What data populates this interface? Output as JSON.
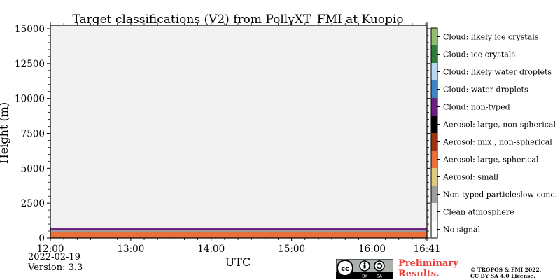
{
  "chart_data": {
    "type": "heatmap",
    "title": "Target classifications (V2) from PollyXT_FMI at Kuopio",
    "xlabel": "UTC",
    "ylabel": "Height (m)",
    "xlim": [
      "12:00",
      "16:41"
    ],
    "ylim": [
      0,
      15250
    ],
    "x_ticks": [
      "12:00",
      "13:00",
      "14:00",
      "15:00",
      "16:00",
      "16:41"
    ],
    "y_ticks": [
      "0",
      "2500",
      "5000",
      "7500",
      "10000",
      "12500",
      "15000"
    ],
    "y_tick_values": [
      0,
      2500,
      5000,
      7500,
      10000,
      12500,
      15000
    ],
    "classes": [
      {
        "code": 0,
        "label": "No signal",
        "color": "#ffffff"
      },
      {
        "code": 1,
        "label": "Clean atmosphere",
        "color": "#f2f2f2"
      },
      {
        "code": 2,
        "label": "Non-typed particleslow conc.",
        "color": "#9e9e9e"
      },
      {
        "code": 3,
        "label": "Aerosol: small",
        "color": "#dfc97a"
      },
      {
        "code": 4,
        "label": "Aerosol: large, spherical",
        "color": "#e8703b"
      },
      {
        "code": 5,
        "label": "Aerosol: mix., non-spherical",
        "color": "#9b3312"
      },
      {
        "code": 6,
        "label": "Aerosol: large, non-spherical",
        "color": "#000000"
      },
      {
        "code": 7,
        "label": "Cloud: non-typed",
        "color": "#6b1f80"
      },
      {
        "code": 8,
        "label": "Cloud: water droplets",
        "color": "#3f84c5"
      },
      {
        "code": 9,
        "label": "Cloud: likely water droplets",
        "color": "#b8d8f2"
      },
      {
        "code": 10,
        "label": "Cloud: ice crystals",
        "color": "#2f7d3a"
      },
      {
        "code": 11,
        "label": "Cloud: likely ice crystals",
        "color": "#8fbf6e"
      }
    ],
    "layers": [
      {
        "class": "Aerosol: large, spherical",
        "x_start": "12:00",
        "x_end": "16:41",
        "height_bottom_m": 0,
        "height_top_m": 400
      },
      {
        "class": "Aerosol: mix., non-spherical",
        "x_start": "13:20",
        "x_end": "14:30",
        "height_bottom_m": 100,
        "height_top_m": 300
      },
      {
        "class": "Non-typed particleslow conc.",
        "x_start": "12:00",
        "x_end": "16:41",
        "height_bottom_m": 350,
        "height_top_m": 550
      },
      {
        "class": "Cloud: non-typed",
        "x_start": "12:00",
        "x_end": "16:41",
        "height_bottom_m": 500,
        "height_top_m": 700
      },
      {
        "class": "Clean atmosphere",
        "x_start": "12:00",
        "x_end": "16:41",
        "height_bottom_m": 700,
        "height_top_m": 15250
      }
    ],
    "grid": false,
    "legend": "colorbar-right"
  },
  "footer": {
    "date": "2022-02-19",
    "version": "Version: 3.3",
    "preliminary": [
      "Preliminary",
      "Results."
    ],
    "copyright": [
      "© TROPOS & FMI 2022.",
      "CC BY SA 4.0 License."
    ],
    "license_badge": {
      "icons": [
        "cc-icon",
        "by-icon",
        "sa-icon"
      ],
      "by": "BY",
      "sa": "SA"
    }
  }
}
